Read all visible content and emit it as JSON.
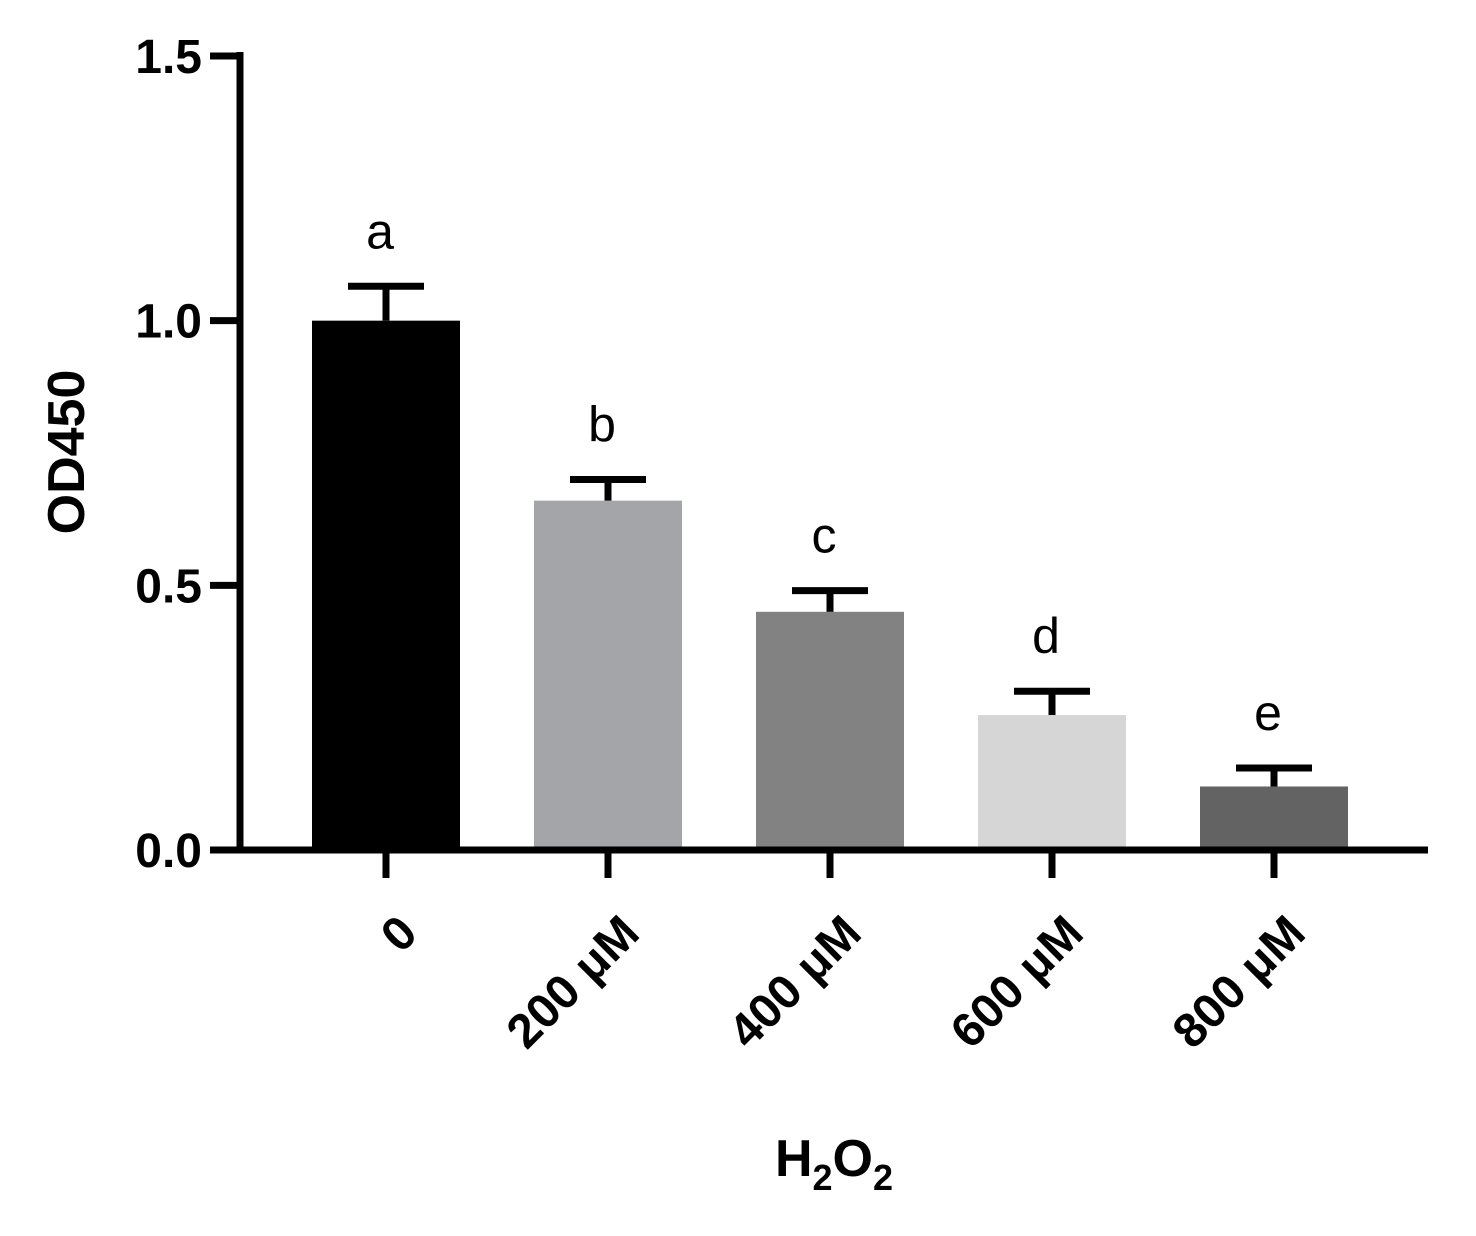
{
  "chart_data": {
    "type": "bar",
    "title": "",
    "xlabel": {
      "main": "H",
      "sub1": "2",
      "mid": "O",
      "sub2": "2"
    },
    "ylabel": "OD450",
    "ylim": [
      0,
      1.5
    ],
    "yticks": [
      "0.0",
      "0.5",
      "1.0",
      "1.5"
    ],
    "categories": [
      "0",
      "200 μM",
      "400 μM",
      "600 μM",
      "800 μM"
    ],
    "values": [
      1.0,
      0.66,
      0.45,
      0.255,
      0.12
    ],
    "errors": [
      0.065,
      0.04,
      0.04,
      0.045,
      0.035
    ],
    "significance": [
      "a",
      "b",
      "c",
      "d",
      "e"
    ],
    "colors": [
      "#000000",
      "#a4a5a8",
      "#828282",
      "#d6d6d6",
      "#636363"
    ],
    "grid": false
  }
}
